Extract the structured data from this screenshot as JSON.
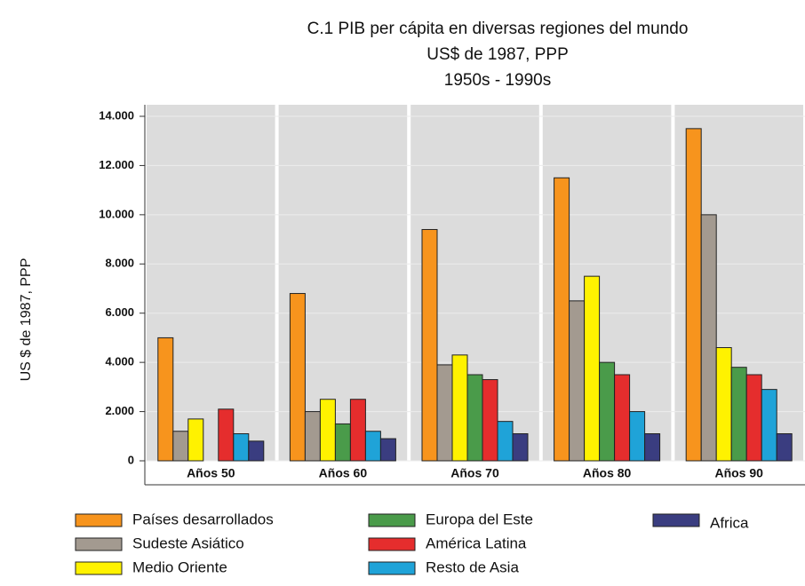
{
  "chart_data": {
    "type": "bar",
    "title": "C.1  PIB per cápita en diversas regiones del mundo",
    "subtitle": "US$ de 1987, PPP",
    "period": "1950s - 1990s",
    "y_label": "US $ de 1987, PPP",
    "categories": [
      "Años 50",
      "Años 60",
      "Años 70",
      "Años 80",
      "Años 90"
    ],
    "series": [
      {
        "name": "Países desarrollados",
        "color": "#f7941d",
        "values": [
          5000,
          6800,
          9400,
          11500,
          13500
        ]
      },
      {
        "name": "Sudeste Asiático",
        "color": "#a39a90",
        "values": [
          1200,
          2000,
          3900,
          6500,
          10000
        ]
      },
      {
        "name": "Medio Oriente",
        "color": "#fff200",
        "values": [
          1700,
          2500,
          4300,
          7500,
          4600
        ]
      },
      {
        "name": "Europa del Este",
        "color": "#4a9b4a",
        "values": [
          null,
          1500,
          3500,
          4000,
          3800
        ]
      },
      {
        "name": "América Latina",
        "color": "#e52d2d",
        "values": [
          2100,
          2500,
          3300,
          3500,
          3500
        ]
      },
      {
        "name": "Resto de Asia",
        "color": "#1fa3d8",
        "values": [
          1100,
          1200,
          1600,
          2000,
          2900
        ]
      },
      {
        "name": "Africa",
        "color": "#3a3d80",
        "values": [
          800,
          900,
          1100,
          1100,
          1100
        ]
      }
    ],
    "ylim": [
      0,
      14000
    ],
    "yticks": [
      0,
      {
        "value": 2000,
        "label": "2.000"
      },
      {
        "value": 4000,
        "label": "4.000"
      },
      {
        "value": 6000,
        "label": "6.000"
      },
      {
        "value": 8000,
        "label": "8.000"
      },
      {
        "value": 10000,
        "label": "10.000"
      },
      {
        "value": 12000,
        "label": "12.000"
      },
      {
        "value": 14000,
        "label": "14.000"
      }
    ],
    "grid": true
  }
}
